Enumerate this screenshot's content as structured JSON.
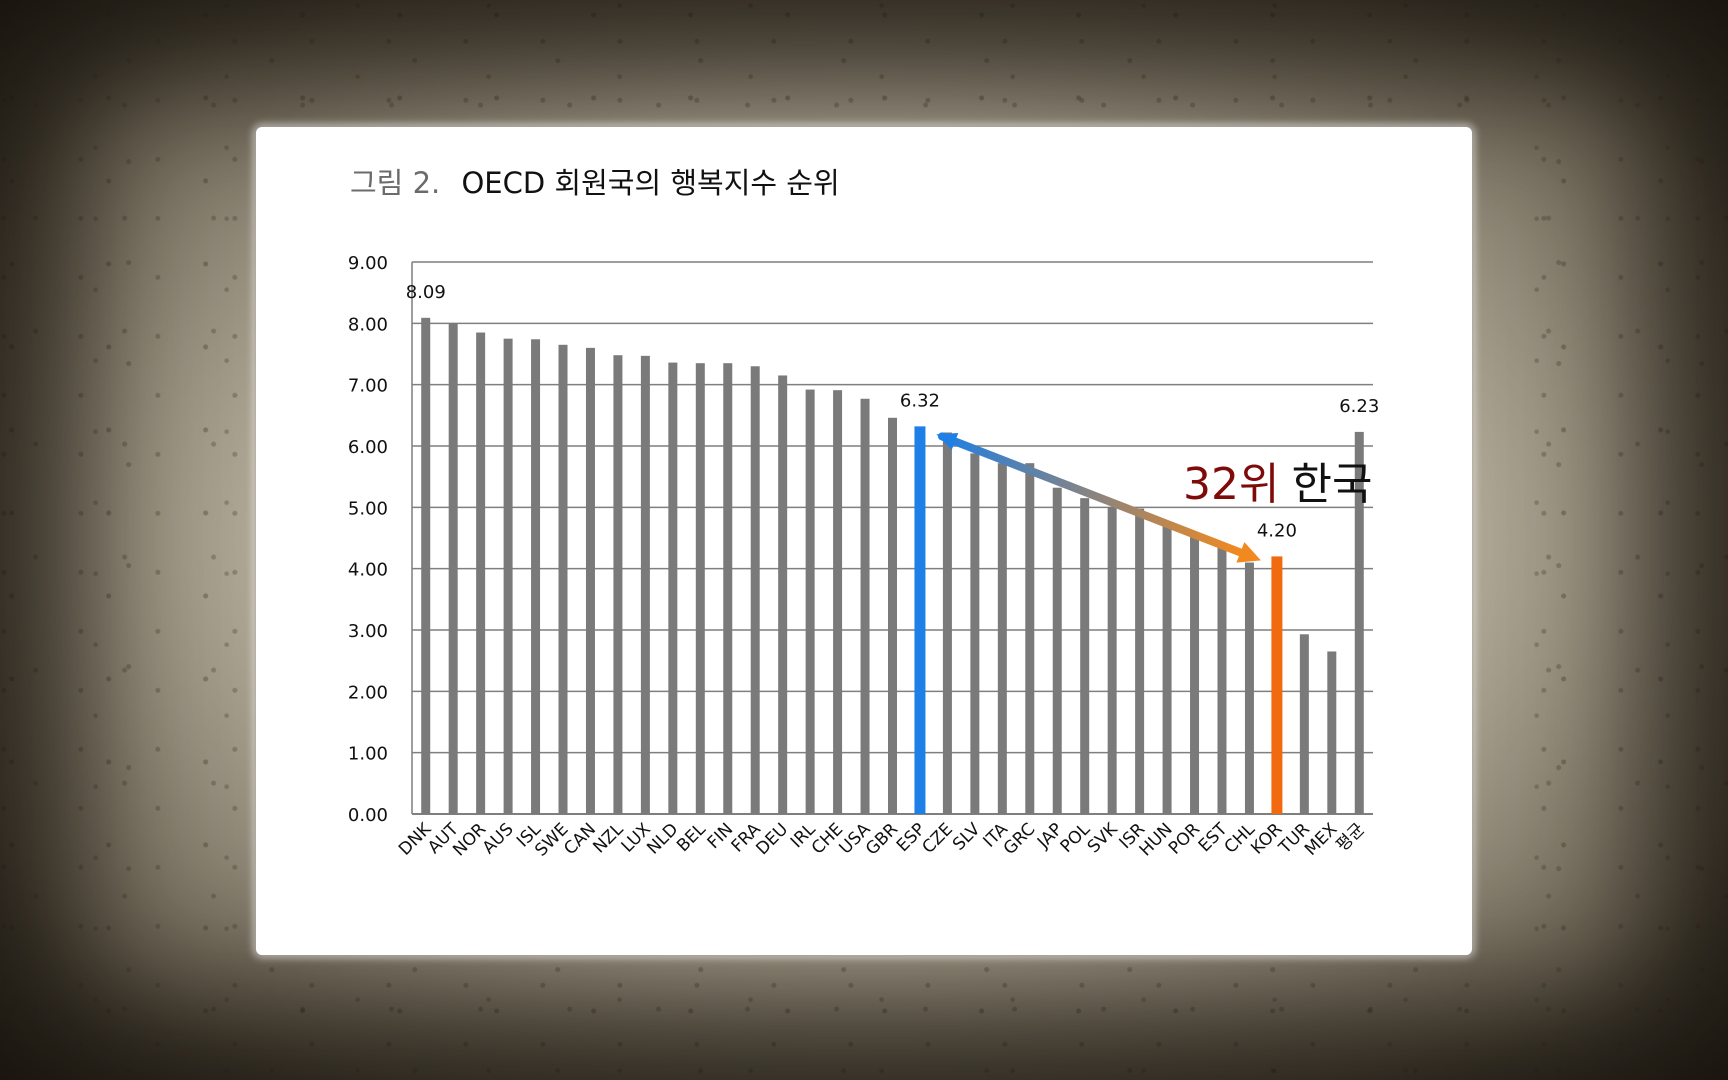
{
  "figure": {
    "title_prefix": "그림 2.",
    "title_text": "OECD 회원국의 행복지수 순위"
  },
  "callout": {
    "rank": "32",
    "rank_suffix": "위",
    "country": "한국"
  },
  "colors": {
    "bar": "#7a7a7a",
    "highlight_esp": "#1e7fe6",
    "highlight_kor": "#f26a10",
    "grid": "#7f7f7f"
  },
  "chart_data": {
    "type": "bar",
    "title": "",
    "xlabel": "",
    "ylabel": "",
    "ylim": [
      0,
      9
    ],
    "yticks": [
      "0.00",
      "1.00",
      "2.00",
      "3.00",
      "4.00",
      "5.00",
      "6.00",
      "7.00",
      "8.00",
      "9.00"
    ],
    "grid": true,
    "categories": [
      "DNK",
      "AUT",
      "NOR",
      "AUS",
      "ISL",
      "SWE",
      "CAN",
      "NZL",
      "LUX",
      "NLD",
      "BEL",
      "FIN",
      "FRA",
      "DEU",
      "IRL",
      "CHE",
      "USA",
      "GBR",
      "ESP",
      "CZE",
      "SLV",
      "ITA",
      "GRC",
      "JAP",
      "POL",
      "SVK",
      "ISR",
      "HUN",
      "POR",
      "EST",
      "CHL",
      "KOR",
      "TUR",
      "MEX",
      "평균"
    ],
    "values": [
      8.09,
      8.0,
      7.85,
      7.75,
      7.74,
      7.65,
      7.6,
      7.48,
      7.47,
      7.36,
      7.35,
      7.35,
      7.3,
      7.15,
      6.92,
      6.91,
      6.77,
      6.46,
      6.32,
      6.22,
      5.88,
      5.72,
      5.72,
      5.32,
      5.15,
      5.0,
      4.98,
      4.72,
      4.52,
      4.35,
      4.1,
      4.2,
      2.93,
      2.65,
      6.23
    ],
    "highlights": {
      "ESP": "blue",
      "KOR": "orange"
    },
    "data_labels": [
      {
        "category": "DNK",
        "text": "8.09"
      },
      {
        "category": "ESP",
        "text": "6.32"
      },
      {
        "category": "KOR",
        "text": "4.20"
      },
      {
        "category": "평균",
        "text": "6.23"
      }
    ],
    "annotation_arrow": {
      "from": "ESP",
      "to": "KOR"
    }
  }
}
